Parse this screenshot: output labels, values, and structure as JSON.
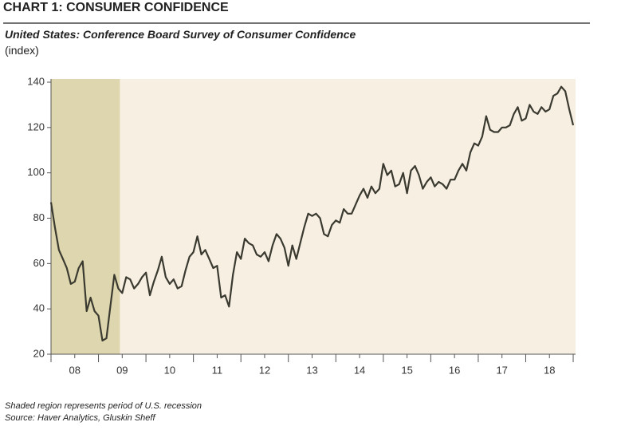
{
  "chart_data": {
    "type": "line",
    "title": "CHART 1: CONSUMER CONFIDENCE",
    "subtitle": "United States: Conference Board Survey of Consumer Confidence",
    "y_label": "(index)",
    "notes": [
      "Shaded region represents period of U.S. recession",
      "Source: Haver Analytics, Gluskin Sheff"
    ],
    "shaded_region": [
      2008,
      2009.45
    ],
    "shade_color": "#ddd6ae",
    "x": [
      2008,
      2008.083,
      2008.167,
      2008.25,
      2008.333,
      2008.417,
      2008.5,
      2008.583,
      2008.667,
      2008.75,
      2008.833,
      2008.917,
      2009,
      2009.083,
      2009.167,
      2009.25,
      2009.333,
      2009.417,
      2009.5,
      2009.583,
      2009.667,
      2009.75,
      2009.833,
      2009.917,
      2010,
      2010.083,
      2010.167,
      2010.25,
      2010.333,
      2010.417,
      2010.5,
      2010.583,
      2010.667,
      2010.75,
      2010.833,
      2010.917,
      2011,
      2011.083,
      2011.167,
      2011.25,
      2011.333,
      2011.417,
      2011.5,
      2011.583,
      2011.667,
      2011.75,
      2011.833,
      2011.917,
      2012,
      2012.083,
      2012.167,
      2012.25,
      2012.333,
      2012.417,
      2012.5,
      2012.583,
      2012.667,
      2012.75,
      2012.833,
      2012.917,
      2013,
      2013.083,
      2013.167,
      2013.25,
      2013.333,
      2013.417,
      2013.5,
      2013.583,
      2013.667,
      2013.75,
      2013.833,
      2013.917,
      2014,
      2014.083,
      2014.167,
      2014.25,
      2014.333,
      2014.417,
      2014.5,
      2014.583,
      2014.667,
      2014.75,
      2014.833,
      2014.917,
      2015,
      2015.083,
      2015.167,
      2015.25,
      2015.333,
      2015.417,
      2015.5,
      2015.583,
      2015.667,
      2015.75,
      2015.833,
      2015.917,
      2016,
      2016.083,
      2016.167,
      2016.25,
      2016.333,
      2016.417,
      2016.5,
      2016.583,
      2016.667,
      2016.75,
      2016.833,
      2016.917,
      2017,
      2017.083,
      2017.167,
      2017.25,
      2017.333,
      2017.417,
      2017.5,
      2017.583,
      2017.667,
      2017.75,
      2017.833,
      2017.917,
      2018,
      2018.083,
      2018.167,
      2018.25,
      2018.333,
      2018.417,
      2018.5,
      2018.583,
      2018.667,
      2018.75,
      2018.833,
      2018.917,
      2019
    ],
    "series": [
      {
        "color": "#3a3a30",
        "values": [
          87,
          76,
          66,
          62,
          58,
          51,
          52,
          58,
          61,
          39,
          45,
          39,
          37,
          26,
          27,
          41,
          55,
          49,
          47,
          54,
          53,
          49,
          51,
          54,
          56,
          46,
          52,
          57,
          63,
          54,
          51,
          53,
          49,
          50,
          57,
          63,
          65,
          72,
          64,
          66,
          62,
          58,
          59,
          45,
          46,
          41,
          55,
          65,
          62,
          71,
          69,
          68,
          64,
          63,
          65,
          61,
          68,
          73,
          71,
          67,
          59,
          68,
          62,
          69,
          76,
          82,
          81,
          82,
          80,
          73,
          72,
          77,
          79,
          78,
          84,
          82,
          82,
          86,
          90,
          93,
          89,
          94,
          91,
          93,
          104,
          99,
          101,
          94,
          95,
          100,
          91,
          101,
          103,
          99,
          93,
          96,
          98,
          94,
          96,
          95,
          93,
          97,
          97,
          101,
          104,
          101,
          109,
          113,
          112,
          116,
          125,
          119,
          118,
          118,
          120,
          120,
          121,
          126,
          129,
          123,
          124,
          130,
          127,
          126,
          129,
          127,
          128,
          134,
          135,
          138,
          136,
          128,
          121
        ]
      }
    ],
    "xlim": [
      2008,
      2019.05
    ],
    "xticks": [
      {
        "value": 2008.5,
        "label": "08"
      },
      {
        "value": 2009.5,
        "label": "09"
      },
      {
        "value": 2010.5,
        "label": "10"
      },
      {
        "value": 2011.5,
        "label": "11"
      },
      {
        "value": 2012.5,
        "label": "12"
      },
      {
        "value": 2013.5,
        "label": "13"
      },
      {
        "value": 2014.5,
        "label": "14"
      },
      {
        "value": 2015.5,
        "label": "15"
      },
      {
        "value": 2016.5,
        "label": "16"
      },
      {
        "value": 2017.5,
        "label": "17"
      },
      {
        "value": 2018.5,
        "label": "18"
      }
    ],
    "ylim": [
      20,
      140
    ],
    "yticks": [
      20,
      40,
      60,
      80,
      100,
      120,
      140
    ],
    "background": "#f8efe3"
  }
}
